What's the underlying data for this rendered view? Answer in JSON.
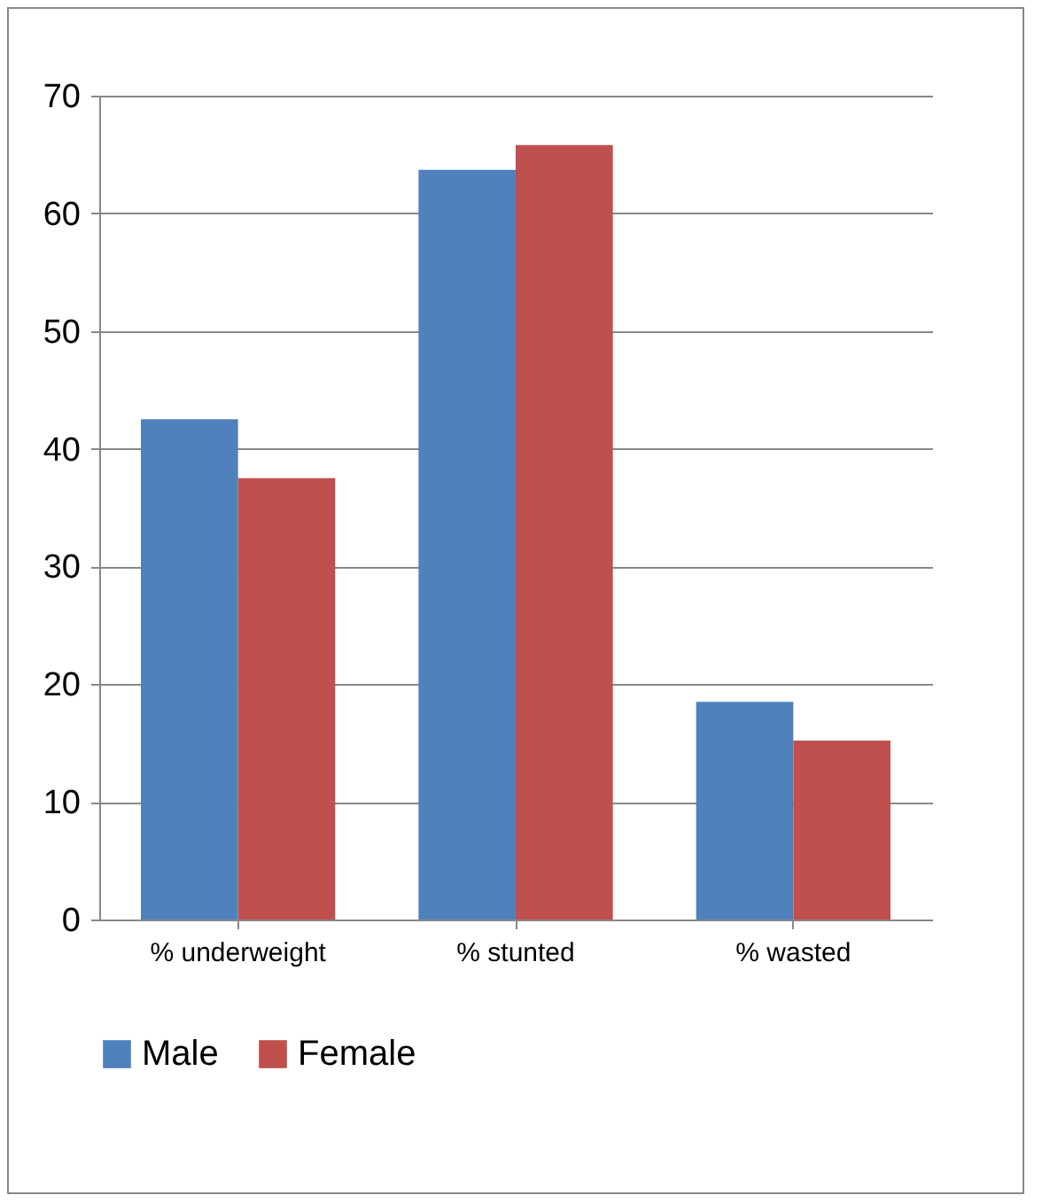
{
  "chart_data": {
    "type": "bar",
    "categories": [
      "% underweight",
      "% stunted",
      "% wasted"
    ],
    "series": [
      {
        "name": "Male",
        "color": "#4f81bd",
        "values": [
          42.5,
          63.7,
          18.5
        ]
      },
      {
        "name": "Female",
        "color": "#c0504d",
        "values": [
          37.5,
          65.8,
          15.2
        ]
      }
    ],
    "ylim": [
      0,
      70
    ],
    "yticks": [
      0,
      10,
      20,
      30,
      40,
      50,
      60,
      70
    ],
    "grid": "y",
    "legend": "bottom"
  }
}
